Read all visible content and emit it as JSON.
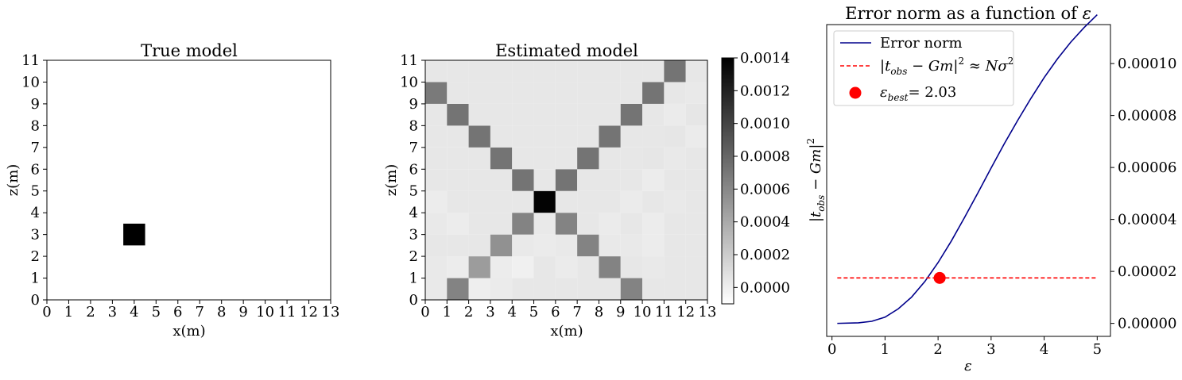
{
  "chart_data": [
    {
      "type": "heatmap",
      "title": "True model",
      "xlabel": "x(m)",
      "ylabel": "z(m)",
      "xlim": [
        0,
        13
      ],
      "ylim": [
        0,
        11
      ],
      "xticks": [
        "0",
        "1",
        "2",
        "3",
        "4",
        "5",
        "6",
        "7",
        "8",
        "9",
        "10",
        "11",
        "12",
        "13"
      ],
      "yticks": [
        "0",
        "1",
        "2",
        "3",
        "4",
        "5",
        "6",
        "7",
        "8",
        "9",
        "10",
        "11"
      ],
      "cells": [
        {
          "x": 4,
          "z": 3,
          "value": 1
        }
      ],
      "cmap": "Greys"
    },
    {
      "type": "heatmap",
      "title": "Estimated model",
      "xlabel": "x(m)",
      "ylabel": "z(m)",
      "xlim": [
        0,
        13
      ],
      "ylim": [
        0,
        11
      ],
      "xticks": [
        "0",
        "1",
        "2",
        "3",
        "4",
        "5",
        "6",
        "7",
        "8",
        "9",
        "10",
        "11",
        "12",
        "13"
      ],
      "yticks": [
        "0",
        "1",
        "2",
        "3",
        "4",
        "5",
        "6",
        "7",
        "8",
        "9",
        "10",
        "11"
      ],
      "grid": {
        "x_start": 0,
        "z_start": 0,
        "nx": 13,
        "nz": 11
      },
      "background_value": 4e-05,
      "cells": [
        {
          "x": 5,
          "z": 4,
          "value": 0.00138
        },
        {
          "x": 4,
          "z": 5,
          "value": 0.00072
        },
        {
          "x": 6,
          "z": 5,
          "value": 0.00072
        },
        {
          "x": 3,
          "z": 6,
          "value": 0.00072
        },
        {
          "x": 7,
          "z": 6,
          "value": 0.00072
        },
        {
          "x": 2,
          "z": 7,
          "value": 0.00072
        },
        {
          "x": 8,
          "z": 7,
          "value": 0.00072
        },
        {
          "x": 1,
          "z": 8,
          "value": 0.00072
        },
        {
          "x": 9,
          "z": 8,
          "value": 0.00072
        },
        {
          "x": 0,
          "z": 9,
          "value": 0.00068
        },
        {
          "x": 10,
          "z": 9,
          "value": 0.00072
        },
        {
          "x": 11,
          "z": 10,
          "value": 0.00072
        },
        {
          "x": 4,
          "z": 3,
          "value": 0.00063
        },
        {
          "x": 6,
          "z": 3,
          "value": 0.00063
        },
        {
          "x": 3,
          "z": 2,
          "value": 0.00055
        },
        {
          "x": 7,
          "z": 2,
          "value": 0.00063
        },
        {
          "x": 2,
          "z": 1,
          "value": 0.00048
        },
        {
          "x": 8,
          "z": 1,
          "value": 0.00063
        },
        {
          "x": 1,
          "z": 0,
          "value": 0.00063
        },
        {
          "x": 9,
          "z": 0,
          "value": 0.00063
        },
        {
          "x": 0,
          "z": 0,
          "value": 3e-05
        },
        {
          "x": 2,
          "z": 0,
          "value": 0.0
        },
        {
          "x": 3,
          "z": 0,
          "value": 2e-05
        },
        {
          "x": 0,
          "z": 1,
          "value": 3e-05
        },
        {
          "x": 1,
          "z": 1,
          "value": 1e-05
        },
        {
          "x": 3,
          "z": 1,
          "value": 1e-05
        },
        {
          "x": 4,
          "z": 1,
          "value": -1e-05
        },
        {
          "x": 5,
          "z": 1,
          "value": 4e-05
        },
        {
          "x": 6,
          "z": 1,
          "value": 2e-05
        },
        {
          "x": 10,
          "z": 1,
          "value": 3e-05
        },
        {
          "x": 11,
          "z": 1,
          "value": 4e-05
        },
        {
          "x": 4,
          "z": 2,
          "value": 3e-05
        },
        {
          "x": 5,
          "z": 2,
          "value": 2e-05
        },
        {
          "x": 6,
          "z": 2,
          "value": 3e-05
        },
        {
          "x": 8,
          "z": 2,
          "value": 3e-05
        },
        {
          "x": 9,
          "z": 2,
          "value": 3e-05
        },
        {
          "x": 10,
          "z": 2,
          "value": 1e-05
        },
        {
          "x": 0,
          "z": 3,
          "value": 3e-05
        },
        {
          "x": 1,
          "z": 3,
          "value": 1e-05
        },
        {
          "x": 5,
          "z": 3,
          "value": 3e-05
        },
        {
          "x": 8,
          "z": 3,
          "value": 2e-05
        },
        {
          "x": 9,
          "z": 3,
          "value": 4e-05
        },
        {
          "x": 10,
          "z": 3,
          "value": 1e-05
        },
        {
          "x": 0,
          "z": 4,
          "value": 1e-05
        },
        {
          "x": 8,
          "z": 4,
          "value": 4e-05
        },
        {
          "x": 9,
          "z": 4,
          "value": 2e-05
        },
        {
          "x": 11,
          "z": 4,
          "value": 3e-05
        },
        {
          "x": 12,
          "z": 4,
          "value": 4e-05
        },
        {
          "x": 9,
          "z": 5,
          "value": 4e-05
        },
        {
          "x": 10,
          "z": 5,
          "value": 1e-05
        },
        {
          "x": 10,
          "z": 6,
          "value": 5e-05
        },
        {
          "x": 11,
          "z": 6,
          "value": 3e-05
        },
        {
          "x": 11,
          "z": 7,
          "value": 5e-05
        },
        {
          "x": 12,
          "z": 7,
          "value": 2e-05
        },
        {
          "x": 12,
          "z": 8,
          "value": 5e-05
        },
        {
          "x": 11,
          "z": 8,
          "value": 2e-05
        },
        {
          "x": 12,
          "z": 9,
          "value": 3e-05
        }
      ],
      "colorbar": {
        "min": -0.0001,
        "max": 0.0014,
        "ticks": [
          "0.0000",
          "0.0002",
          "0.0004",
          "0.0006",
          "0.0008",
          "0.0010",
          "0.0012",
          "0.0014"
        ],
        "tick_values": [
          0,
          0.0002,
          0.0004,
          0.0006,
          0.0008,
          0.001,
          0.0012,
          0.0014
        ]
      }
    },
    {
      "type": "line",
      "title": "Error norm as a function of ε",
      "xlabel": "ε",
      "ylabel": "|t_obs − Gm|²",
      "xlim": [
        -0.1,
        5.25
      ],
      "ylim": [
        -5e-06,
        0.000115
      ],
      "xticks": [
        "0",
        "1",
        "2",
        "3",
        "4",
        "5"
      ],
      "xtick_values": [
        0,
        1,
        2,
        3,
        4,
        5
      ],
      "yticks": [
        "0.00000",
        "0.00002",
        "0.00004",
        "0.00006",
        "0.00008",
        "0.00010"
      ],
      "ytick_values": [
        0,
        2e-05,
        4e-05,
        6e-05,
        8e-05,
        0.0001
      ],
      "yaxis_side": "right",
      "legend_position": "top-left",
      "series": [
        {
          "name": "Error norm",
          "color": "#00008b",
          "style": "solid",
          "x": [
            0.1,
            0.5,
            0.75,
            1.0,
            1.25,
            1.5,
            1.75,
            2.0,
            2.25,
            2.5,
            2.75,
            3.0,
            3.25,
            3.5,
            3.75,
            4.0,
            4.25,
            4.5,
            4.75,
            5.0
          ],
          "y": [
            0.0,
            2e-07,
            8e-07,
            2.4e-06,
            5.6e-06,
            1.01e-05,
            1.61e-05,
            2.34e-05,
            3.17e-05,
            4.08e-05,
            5.02e-05,
            5.98e-05,
            6.92e-05,
            7.81e-05,
            8.66e-05,
            9.46e-05,
            0.0001018,
            0.0001082,
            0.0001138,
            0.0001188
          ]
        },
        {
          "name": "|t_obs − Gm|² ≈ Nσ²",
          "color": "#ff0000",
          "style": "dashed",
          "x": [
            0.1,
            5.0
          ],
          "y": [
            1.75e-05,
            1.75e-05
          ]
        },
        {
          "name": "ε_best= 2.03",
          "color": "#ff0000",
          "style": "marker",
          "x": [
            2.03
          ],
          "y": [
            1.75e-05
          ]
        }
      ]
    }
  ]
}
